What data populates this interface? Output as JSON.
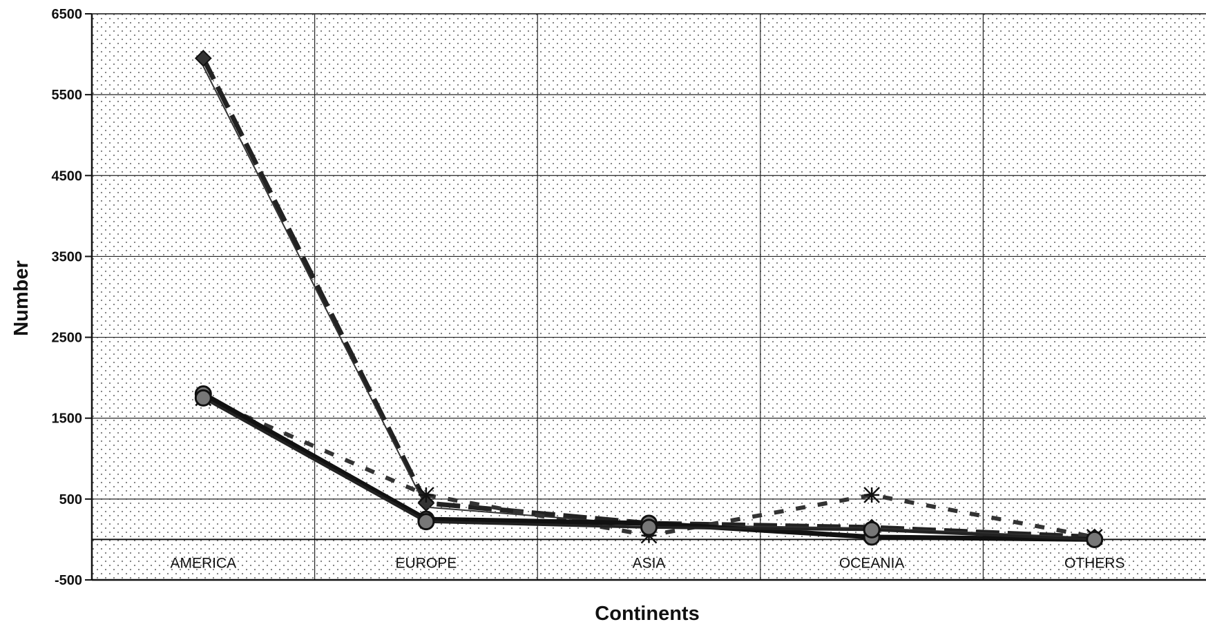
{
  "chart_data": {
    "type": "line",
    "title": "",
    "xlabel": "Continents",
    "ylabel": "Number",
    "categories": [
      "AMERICA",
      "EUROPE",
      "ASIA",
      "OCEANIA",
      "OTHERS"
    ],
    "ylim": [
      -500,
      6500
    ],
    "yticks": [
      -500,
      500,
      1500,
      2500,
      3500,
      4500,
      5500,
      6500
    ],
    "grid": true,
    "legend": "none",
    "series": [
      {
        "values": [
          5950,
          450,
          200,
          150,
          30
        ],
        "style": "dash-heavy",
        "marker": "diamond",
        "color": "#222222"
      },
      {
        "values": [
          5850,
          400,
          180,
          140,
          20
        ],
        "style": "solid-thin",
        "marker": "none",
        "color": "#333333"
      },
      {
        "values": [
          1750,
          550,
          50,
          550,
          30
        ],
        "style": "dotted-heavy",
        "marker": "asterisk",
        "color": "#333333"
      },
      {
        "values": [
          1800,
          250,
          200,
          30,
          0
        ],
        "style": "solid-heavy",
        "marker": "circle",
        "color": "#111111"
      },
      {
        "values": [
          1750,
          220,
          150,
          120,
          0
        ],
        "style": "solid-medium",
        "marker": "circle",
        "color": "#222222"
      }
    ]
  }
}
